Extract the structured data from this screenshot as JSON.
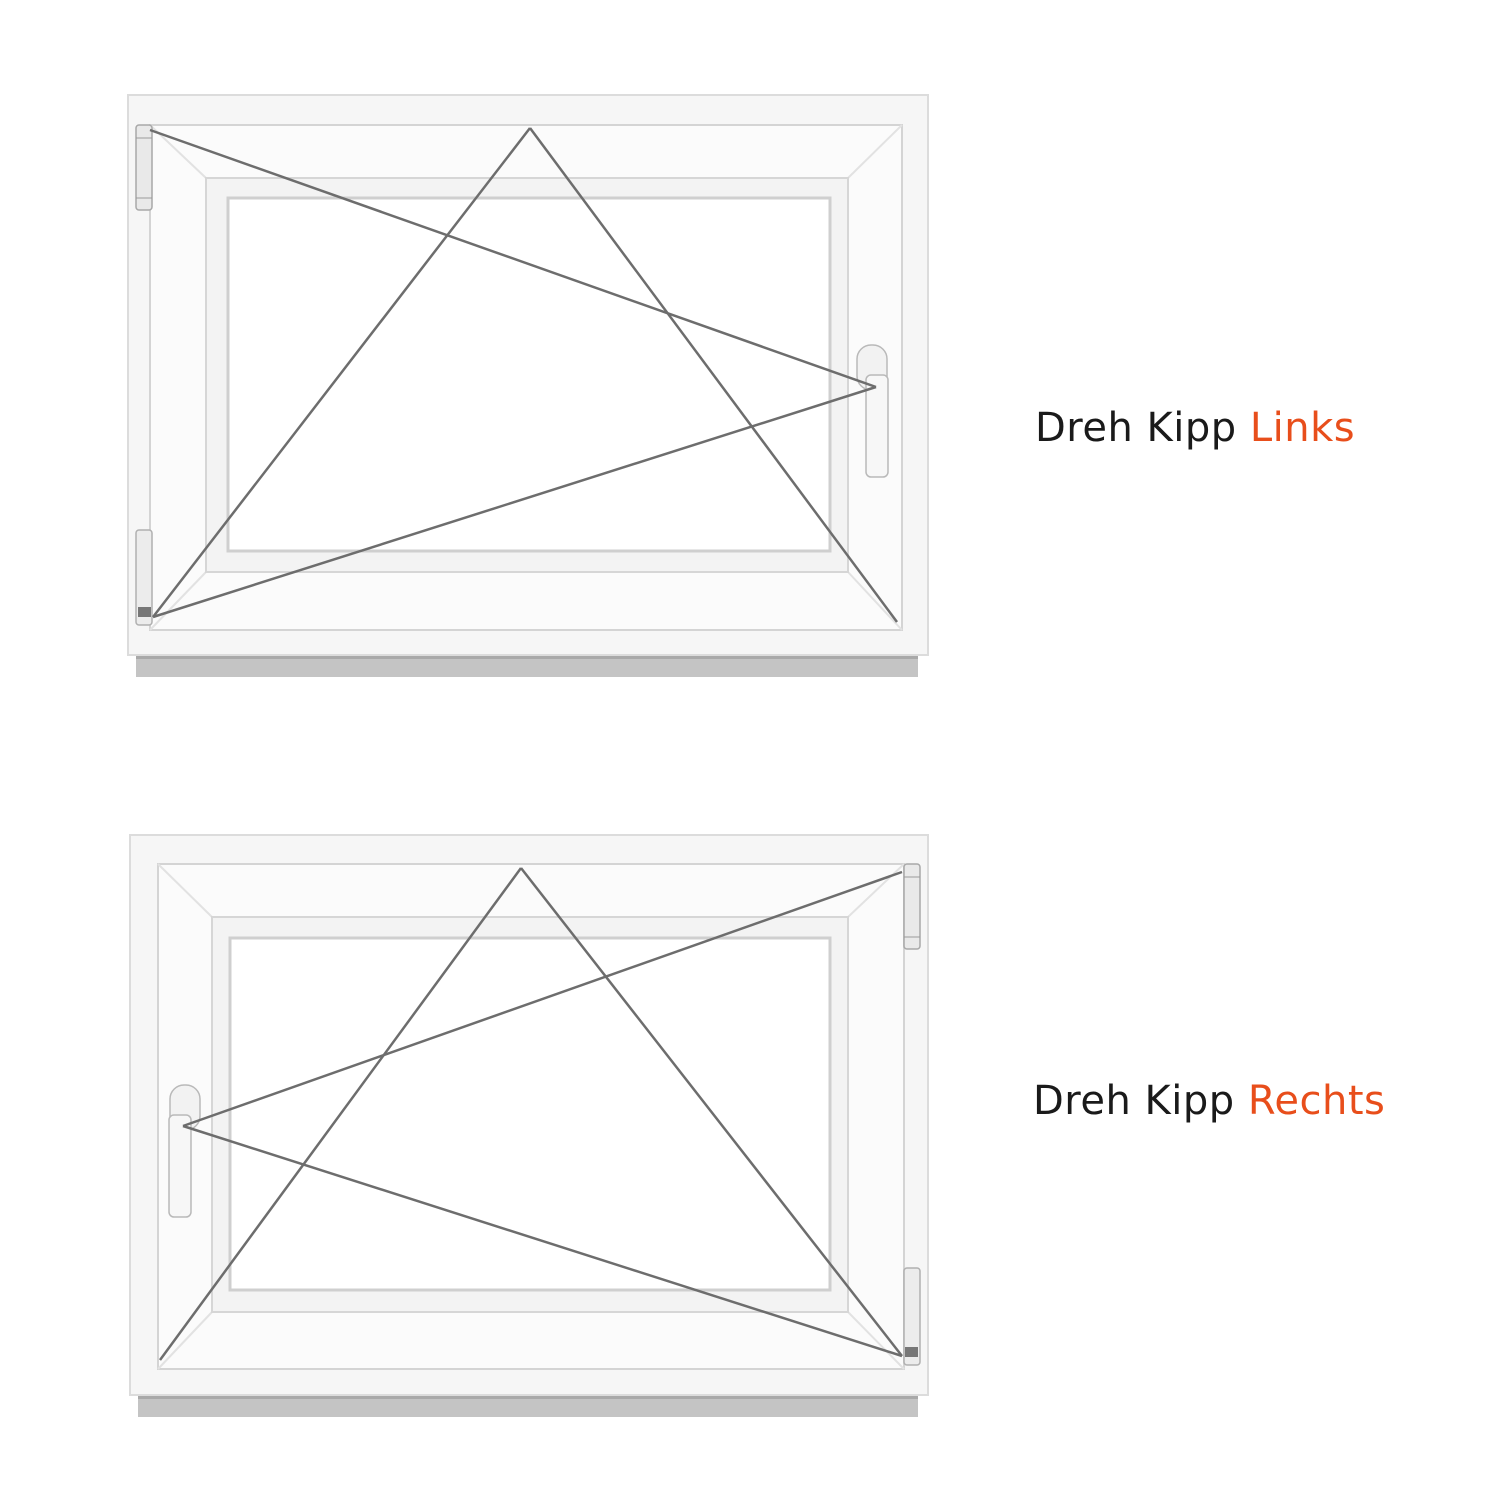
{
  "windows": [
    {
      "id": "links",
      "caption": {
        "prefix": "Dreh Kipp",
        "accent": "Links"
      },
      "hinge_side": "left",
      "handle_side": "right"
    },
    {
      "id": "rechts",
      "caption": {
        "prefix": "Dreh Kipp",
        "accent": "Rechts"
      },
      "hinge_side": "right",
      "handle_side": "left"
    }
  ],
  "colors": {
    "accent": "#e84e1b",
    "text": "#1a1a1a",
    "frame": "#f7f7f7",
    "frame_edge": "#d8d8d8",
    "glass": "#ffffff",
    "sill": "#bdbdbd",
    "opening_lines": "#6d6d6d"
  }
}
